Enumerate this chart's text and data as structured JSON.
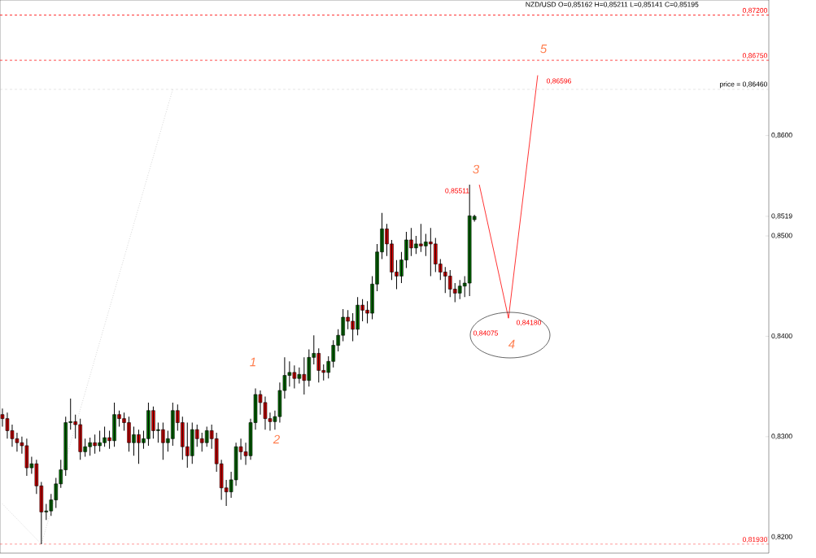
{
  "chart_data": {
    "type": "candlestick",
    "title": "NZD/USD O=0,85162 H=0,85211 L=0,85141 C=0,85195",
    "categories": [
      null,
      null,
      null,
      null,
      null,
      null,
      null,
      null,
      null,
      null,
      null,
      null,
      null,
      null,
      null,
      null,
      null,
      null,
      null,
      null,
      null,
      null,
      null,
      null,
      null,
      null,
      null,
      null,
      null,
      null,
      null,
      null,
      null,
      null,
      null,
      null,
      null,
      null,
      null,
      null,
      null,
      null,
      null,
      null,
      null,
      null,
      null,
      null,
      null,
      null,
      null,
      null,
      null,
      null,
      null,
      null,
      null,
      null,
      null,
      null,
      null,
      null,
      null,
      null,
      null,
      null,
      null,
      null,
      null,
      null,
      null,
      null,
      null,
      null,
      null,
      null,
      null,
      null,
      null,
      null,
      null,
      null,
      null,
      null,
      null,
      null,
      null,
      null,
      null,
      null,
      null,
      null,
      null,
      null,
      null,
      null,
      null,
      null,
      null,
      null,
      null,
      null,
      null,
      null,
      null,
      null,
      null,
      null,
      null,
      null,
      null,
      null,
      null,
      null,
      null,
      null,
      null,
      null,
      null,
      null,
      null,
      null,
      null,
      null,
      null,
      null,
      null,
      null,
      null,
      null,
      null,
      null,
      null,
      null,
      null,
      null,
      null,
      null,
      null,
      null,
      null,
      null,
      null,
      null,
      null,
      null,
      null,
      null,
      null,
      null,
      null,
      null,
      null,
      null,
      null,
      null,
      null,
      null
    ],
    "ohlc": [
      [
        0.8322,
        0.8328,
        0.831,
        0.8318
      ],
      [
        0.8318,
        0.8324,
        0.8298,
        0.8306
      ],
      [
        0.8306,
        0.8312,
        0.829,
        0.8298
      ],
      [
        0.8298,
        0.8304,
        0.8285,
        0.8294
      ],
      [
        0.8294,
        0.83,
        0.8283,
        0.8291
      ],
      [
        0.8291,
        0.8298,
        0.8261,
        0.8269
      ],
      [
        0.8269,
        0.828,
        0.8263,
        0.8273
      ],
      [
        0.8273,
        0.8277,
        0.8243,
        0.8251
      ],
      [
        0.8251,
        0.8255,
        0.8193,
        0.8225
      ],
      [
        0.8225,
        0.8233,
        0.8217,
        0.8226
      ],
      [
        0.8226,
        0.8243,
        0.8221,
        0.8237
      ],
      [
        0.8237,
        0.8259,
        0.8229,
        0.8253
      ],
      [
        0.8253,
        0.8277,
        0.8249,
        0.8267
      ],
      [
        0.8267,
        0.832,
        0.8261,
        0.8314
      ],
      [
        0.8314,
        0.8338,
        0.8307,
        0.8315
      ],
      [
        0.8315,
        0.8322,
        0.8298,
        0.8312
      ],
      [
        0.8312,
        0.8318,
        0.8277,
        0.8285
      ],
      [
        0.8285,
        0.8298,
        0.828,
        0.829
      ],
      [
        0.829,
        0.8299,
        0.8281,
        0.8294
      ],
      [
        0.8294,
        0.8302,
        0.8283,
        0.8291
      ],
      [
        0.8291,
        0.8306,
        0.8285,
        0.8294
      ],
      [
        0.8294,
        0.831,
        0.829,
        0.8299
      ],
      [
        0.8299,
        0.8306,
        0.8288,
        0.8296
      ],
      [
        0.8296,
        0.8334,
        0.829,
        0.8322
      ],
      [
        0.8322,
        0.8326,
        0.831,
        0.8318
      ],
      [
        0.8318,
        0.8324,
        0.8306,
        0.8314
      ],
      [
        0.8314,
        0.832,
        0.8285,
        0.8294
      ],
      [
        0.8294,
        0.831,
        0.8281,
        0.8302
      ],
      [
        0.8302,
        0.8307,
        0.8273,
        0.8294
      ],
      [
        0.8294,
        0.8306,
        0.8288,
        0.8298
      ],
      [
        0.8298,
        0.8334,
        0.8291,
        0.8326
      ],
      [
        0.8326,
        0.833,
        0.8298,
        0.8306
      ],
      [
        0.8306,
        0.8314,
        0.8294,
        0.8307
      ],
      [
        0.8307,
        0.8314,
        0.8277,
        0.8294
      ],
      [
        0.8294,
        0.8306,
        0.8285,
        0.8298
      ],
      [
        0.8298,
        0.8334,
        0.8291,
        0.8326
      ],
      [
        0.8326,
        0.8332,
        0.8306,
        0.8314
      ],
      [
        0.8314,
        0.832,
        0.8277,
        0.829
      ],
      [
        0.829,
        0.8314,
        0.8269,
        0.8281
      ],
      [
        0.8281,
        0.8314,
        0.8273,
        0.8307
      ],
      [
        0.8307,
        0.8312,
        0.829,
        0.8298
      ],
      [
        0.8298,
        0.8304,
        0.8285,
        0.8294
      ],
      [
        0.8294,
        0.831,
        0.829,
        0.8306
      ],
      [
        0.8306,
        0.8312,
        0.8288,
        0.8298
      ],
      [
        0.8298,
        0.8304,
        0.8265,
        0.8273
      ],
      [
        0.8273,
        0.8277,
        0.8237,
        0.8249
      ],
      [
        0.8249,
        0.8257,
        0.8231,
        0.8245
      ],
      [
        0.8245,
        0.8265,
        0.8239,
        0.8257
      ],
      [
        0.8257,
        0.8294,
        0.8251,
        0.829
      ],
      [
        0.829,
        0.8298,
        0.8277,
        0.8285
      ],
      [
        0.8285,
        0.8294,
        0.8272,
        0.8281
      ],
      [
        0.8281,
        0.8318,
        0.8277,
        0.8314
      ],
      [
        0.8314,
        0.8348,
        0.8307,
        0.8342
      ],
      [
        0.8342,
        0.8346,
        0.8322,
        0.8334
      ],
      [
        0.8334,
        0.834,
        0.8307,
        0.8318
      ],
      [
        0.8318,
        0.8324,
        0.8306,
        0.8315
      ],
      [
        0.8315,
        0.8326,
        0.8307,
        0.832
      ],
      [
        0.832,
        0.8354,
        0.8314,
        0.8346
      ],
      [
        0.8346,
        0.8379,
        0.8338,
        0.8361
      ],
      [
        0.8361,
        0.8375,
        0.835,
        0.8364
      ],
      [
        0.8364,
        0.8371,
        0.8348,
        0.8358
      ],
      [
        0.8358,
        0.8369,
        0.8353,
        0.8362
      ],
      [
        0.8362,
        0.8379,
        0.8342,
        0.8356
      ],
      [
        0.8356,
        0.8387,
        0.835,
        0.8379
      ],
      [
        0.8379,
        0.8401,
        0.8372,
        0.8383
      ],
      [
        0.8383,
        0.8388,
        0.8354,
        0.8366
      ],
      [
        0.8366,
        0.8372,
        0.8356,
        0.8364
      ],
      [
        0.8364,
        0.838,
        0.8358,
        0.8375
      ],
      [
        0.8375,
        0.8396,
        0.8369,
        0.8391
      ],
      [
        0.8391,
        0.8407,
        0.8385,
        0.8401
      ],
      [
        0.8401,
        0.8427,
        0.8395,
        0.8419
      ],
      [
        0.8419,
        0.8426,
        0.8407,
        0.8415
      ],
      [
        0.8415,
        0.8423,
        0.8395,
        0.8407
      ],
      [
        0.8407,
        0.8439,
        0.8401,
        0.8431
      ],
      [
        0.8431,
        0.8437,
        0.8415,
        0.8426
      ],
      [
        0.8426,
        0.8435,
        0.8413,
        0.8423
      ],
      [
        0.8423,
        0.846,
        0.8417,
        0.8452
      ],
      [
        0.8452,
        0.8492,
        0.8445,
        0.8484
      ],
      [
        0.8484,
        0.8523,
        0.8477,
        0.8507
      ],
      [
        0.8507,
        0.8512,
        0.848,
        0.8492
      ],
      [
        0.8492,
        0.8496,
        0.8456,
        0.8464
      ],
      [
        0.8464,
        0.8476,
        0.8447,
        0.846
      ],
      [
        0.846,
        0.8484,
        0.8453,
        0.8476
      ],
      [
        0.8476,
        0.8504,
        0.8468,
        0.8496
      ],
      [
        0.8496,
        0.8508,
        0.848,
        0.8488
      ],
      [
        0.8488,
        0.85,
        0.8482,
        0.8492
      ],
      [
        0.8492,
        0.8512,
        0.8484,
        0.849
      ],
      [
        0.849,
        0.8502,
        0.848,
        0.8494
      ],
      [
        0.8494,
        0.8508,
        0.846,
        0.8492
      ],
      [
        0.8492,
        0.8498,
        0.8464,
        0.8472
      ],
      [
        0.8472,
        0.8477,
        0.8456,
        0.8464
      ],
      [
        0.8464,
        0.8469,
        0.8443,
        0.846
      ],
      [
        0.846,
        0.8466,
        0.8439,
        0.8447
      ],
      [
        0.8447,
        0.8453,
        0.8434,
        0.8443
      ],
      [
        0.8443,
        0.8456,
        0.8437,
        0.845
      ],
      [
        0.845,
        0.846,
        0.8439,
        0.8453
      ],
      [
        0.8453,
        0.85511,
        0.844,
        0.852
      ],
      [
        0.85162,
        0.85211,
        0.85141,
        0.85195
      ],
      null,
      null,
      null,
      null,
      null,
      null,
      null,
      null,
      null,
      null,
      null,
      null,
      null,
      null,
      null,
      null,
      null,
      null,
      null,
      null,
      null,
      null,
      null,
      null,
      null,
      null,
      null,
      null,
      null,
      null,
      null,
      null,
      null,
      null,
      null,
      null,
      null,
      null,
      null,
      null,
      null,
      null,
      null,
      null,
      null,
      null,
      null,
      null,
      null,
      null,
      null,
      null,
      null,
      null,
      null,
      null,
      null,
      null,
      null,
      null
    ],
    "series": [
      {
        "type": "line",
        "color": "#ff0000",
        "line_style": "solid",
        "values": [
          null,
          null,
          null,
          null,
          null,
          null,
          null,
          null,
          null,
          null,
          null,
          null,
          null,
          null,
          null,
          null,
          null,
          null,
          null,
          null,
          null,
          null,
          null,
          null,
          null,
          null,
          null,
          null,
          null,
          null,
          null,
          null,
          null,
          null,
          null,
          null,
          null,
          null,
          null,
          null,
          null,
          null,
          null,
          null,
          null,
          null,
          null,
          null,
          null,
          null,
          null,
          null,
          null,
          null,
          null,
          null,
          null,
          null,
          null,
          null,
          null,
          null,
          null,
          null,
          null,
          null,
          null,
          null,
          null,
          null,
          null,
          null,
          null,
          null,
          null,
          null,
          null,
          null,
          null,
          null,
          null,
          null,
          null,
          null,
          null,
          null,
          null,
          null,
          null,
          null,
          null,
          null,
          null,
          null,
          null,
          null,
          null,
          null,
          0.8551,
          null,
          null,
          null,
          null,
          null,
          0.8418,
          null,
          null,
          null,
          null,
          null,
          0.866,
          null,
          null,
          null,
          null,
          null,
          null,
          null,
          null,
          null,
          null,
          null,
          null,
          null,
          null,
          null,
          null,
          null,
          null,
          null,
          null,
          null,
          null,
          null,
          null,
          null,
          null,
          null,
          null,
          null,
          null,
          null,
          null,
          null,
          null,
          null,
          null,
          null,
          null,
          null,
          null,
          null,
          null,
          null,
          null,
          null,
          null,
          null
        ]
      },
      {
        "type": "line",
        "color": "#c0c0c0",
        "line_style": "dotted",
        "values": [
          0.8233,
          null,
          null,
          null,
          null,
          null,
          null,
          null,
          0.8193,
          null,
          null,
          null,
          null,
          null,
          null,
          null,
          null,
          null,
          null,
          null,
          null,
          null,
          null,
          null,
          null,
          null,
          null,
          null,
          null,
          null,
          null,
          null,
          null,
          null,
          null,
          0.8646,
          null,
          null,
          null,
          null,
          null,
          null,
          null,
          null,
          null,
          null,
          null,
          null,
          null,
          null,
          null,
          null,
          null,
          null,
          null,
          null,
          null,
          null,
          null,
          null,
          null,
          null,
          null,
          null,
          null,
          null,
          null,
          null,
          null,
          null,
          null,
          null,
          null,
          null,
          null,
          null,
          null,
          null,
          null,
          null,
          null,
          null,
          null,
          null,
          null,
          null,
          null,
          null,
          null,
          null,
          null,
          null,
          null,
          null,
          null,
          null,
          null,
          null,
          null,
          null,
          null,
          null,
          null,
          null,
          null,
          null,
          null,
          null,
          null,
          null,
          null,
          null,
          null,
          null,
          null,
          null,
          null,
          null,
          null,
          null,
          null,
          null,
          null,
          null,
          null,
          null,
          null,
          null,
          null,
          null,
          null,
          null,
          null,
          null,
          null,
          null,
          null,
          null,
          null,
          null,
          null,
          null,
          null,
          null,
          null,
          null,
          null,
          null,
          null,
          null,
          null,
          null,
          null,
          null,
          null,
          null,
          null,
          null
        ]
      }
    ],
    "ylim": [
      0.8184,
      0.8735
    ],
    "yticks": [
      {
        "value": 0.82,
        "label": "0,8200"
      },
      {
        "value": 0.83,
        "label": "0,8300"
      },
      {
        "value": 0.84,
        "label": "0,8400"
      },
      {
        "value": 0.85,
        "label": "0,8500"
      },
      {
        "value": 0.85195,
        "label": "0,8519"
      },
      {
        "value": 0.86,
        "label": "0,8600"
      }
    ],
    "tick_labels": "y",
    "ref_lines": [
      {
        "axis": "y",
        "value": 0.872,
        "label": "0,87200",
        "color": "#ff0000",
        "line_style": "dashed"
      },
      {
        "axis": "y",
        "value": 0.8675,
        "label": "0,86750",
        "color": "#ff0000",
        "line_style": "dashed"
      },
      {
        "axis": "y",
        "value": 0.8646,
        "label": "price = 0,86460",
        "color": "#c0c0c0",
        "line_style": "dashed"
      },
      {
        "axis": "y",
        "value": 0.8193,
        "label": "0,81930",
        "color": "#ff0000",
        "line_style": "dashed"
      }
    ],
    "annotations": [
      "1",
      "2",
      "3",
      "4",
      "5",
      "0,85511",
      "0,84180",
      "0,84075",
      "0,86596"
    ],
    "marker": "none"
  }
}
